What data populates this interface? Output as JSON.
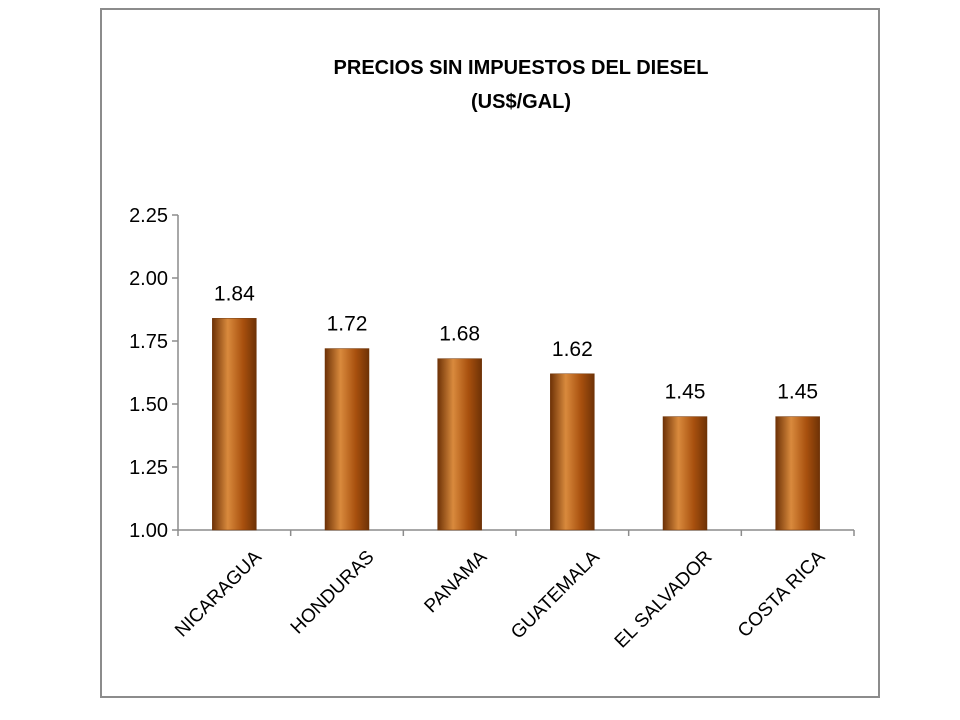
{
  "chart_data": {
    "type": "bar",
    "title": "PRECIOS SIN IMPUESTOS DEL DIESEL",
    "subtitle": "(US$/GAL)",
    "xlabel": "",
    "ylabel": "",
    "categories": [
      "NICARAGUA",
      "HONDURAS",
      "PANAMA",
      "GUATEMALA",
      "EL SALVADOR",
      "COSTA RICA"
    ],
    "values": [
      1.84,
      1.72,
      1.68,
      1.62,
      1.45,
      1.45
    ],
    "data_labels": [
      "1.84",
      "1.72",
      "1.68",
      "1.62",
      "1.45",
      "1.45"
    ],
    "ylim": [
      1.0,
      2.25
    ],
    "yticks": [
      1.0,
      1.25,
      1.5,
      1.75,
      2.0,
      2.25
    ],
    "ytick_labels": [
      "1.00",
      "1.25",
      "1.50",
      "1.75",
      "2.00",
      "2.25"
    ],
    "grid": false,
    "legend": "none",
    "bar_color": "#a8500e",
    "bar_color_light": "#d98a3d",
    "bar_color_dark": "#6e3206",
    "axis_color": "#8c8c8c"
  }
}
